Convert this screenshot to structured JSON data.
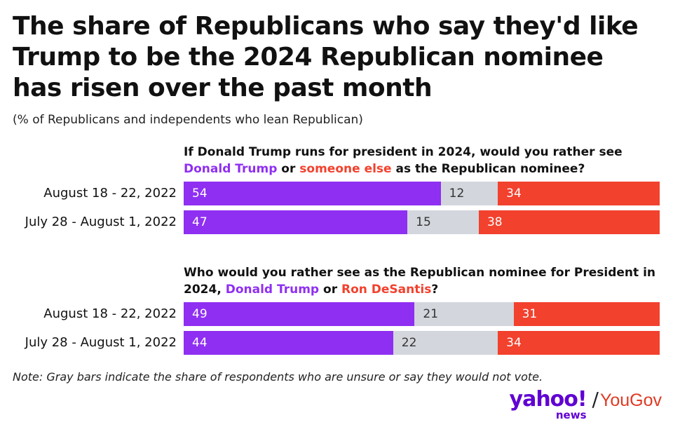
{
  "title": "The share of Republicans who say they'd like Trump to be the 2024 Republican nominee has risen over the past month",
  "subtitle": "(% of Republicans and independents who lean Republican)",
  "note": "Note: Gray bars indicate the share of respondents who are unsure or say they would not vote.",
  "logos": {
    "yahoo": "yahoo!",
    "news": "news",
    "slash": "/",
    "yougov": "YouGov"
  },
  "colors": {
    "option_a": "#8f2ff2",
    "neither": "#d3d6dd",
    "option_b": "#f2412d"
  },
  "chart_data": [
    {
      "type": "bar",
      "orientation": "horizontal-stacked",
      "question": {
        "prefix": "If Donald Trump runs for president in 2024, would you rather see ",
        "option_a": "Donald Trump",
        "middle": " or ",
        "option_b": "someone else",
        "suffix": " as the Republican nominee?"
      },
      "categories": [
        "August 18 - 22, 2022",
        "July 28 - August 1, 2022"
      ],
      "series": [
        {
          "values": [
            54,
            47
          ]
        },
        {
          "values": [
            12,
            15
          ]
        },
        {
          "values": [
            34,
            38
          ]
        }
      ]
    },
    {
      "type": "bar",
      "orientation": "horizontal-stacked",
      "question": {
        "prefix": "Who would you rather see as the Republican nominee for President in 2024, ",
        "option_a": "Donald Trump",
        "middle": " or ",
        "option_b": "Ron DeSantis",
        "suffix": "?"
      },
      "categories": [
        "August 18 - 22, 2022",
        "July 28 - August 1, 2022"
      ],
      "series": [
        {
          "values": [
            49,
            44
          ]
        },
        {
          "values": [
            21,
            22
          ]
        },
        {
          "values": [
            31,
            34
          ]
        }
      ]
    }
  ]
}
